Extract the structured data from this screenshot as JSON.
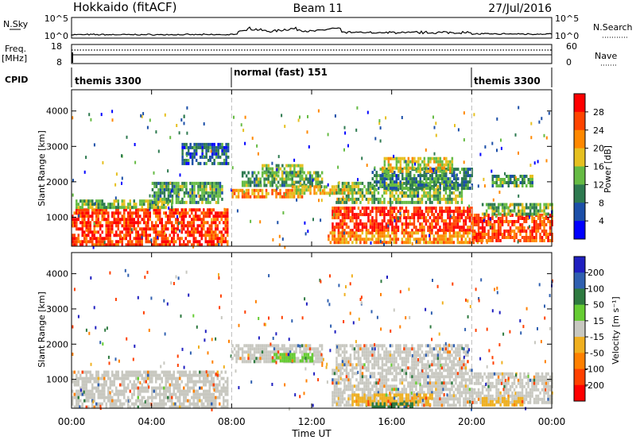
{
  "header": {
    "station": "Hokkaido (fitACF)",
    "beam": "Beam 11",
    "date": "27/Jul/2016"
  },
  "nsky_panel": {
    "left_label": "N.Sky",
    "left_ticks": [
      "10^5",
      "10^0"
    ],
    "right_ticks": [
      "10^5",
      "10^0"
    ],
    "right_label": "N.Search"
  },
  "freq_panel": {
    "left_label_line1": "Freq.",
    "left_label_line2": "[MHz]",
    "left_ticks": [
      "18",
      "8"
    ],
    "right_ticks": [
      "60",
      "0"
    ],
    "right_label": "Nave"
  },
  "cpid_panel": {
    "label": "CPID",
    "segments": [
      {
        "label": "themis 3300",
        "start_hour": 0,
        "end_hour": 8
      },
      {
        "label": "normal (fast) 151",
        "start_hour": 8,
        "end_hour": 20
      },
      {
        "label": "themis 3300",
        "start_hour": 20,
        "end_hour": 24
      }
    ]
  },
  "colors": {
    "power_scale": [
      "#0000ff",
      "#1c4fa8",
      "#2e7a50",
      "#66bb44",
      "#e6c020",
      "#ff8800",
      "#ff4400",
      "#ff0000"
    ],
    "velocity_scale": [
      "#2020c0",
      "#3060b0",
      "#2e7a40",
      "#66cc33",
      "#c8c8c0",
      "#f0b020",
      "#ff8000",
      "#ff4000",
      "#ff0000"
    ]
  },
  "chart_data": [
    {
      "type": "heatmap",
      "name": "power",
      "ylabel": "Slant Range [km]",
      "xlabel": "",
      "xlim": [
        0,
        24
      ],
      "ylim": [
        180,
        4600
      ],
      "yticks": [
        "1000",
        "2000",
        "3000",
        "4000"
      ],
      "xticks": [
        "00:00",
        "04:00",
        "08:00",
        "12:00",
        "16:00",
        "20:00",
        "00:00"
      ],
      "colorbar": {
        "label": "Power [dB]",
        "ticks": [
          "28",
          "24",
          "20",
          "16",
          "12",
          "8",
          "4"
        ],
        "range": [
          0,
          32
        ]
      },
      "regions": [
        {
          "t0": 0.0,
          "t1": 7.8,
          "r0": 250,
          "r1": 1250,
          "value": 27
        },
        {
          "t0": 0.2,
          "t1": 5.0,
          "r0": 1250,
          "r1": 1500,
          "value": 14
        },
        {
          "t0": 4.0,
          "t1": 7.5,
          "r0": 1400,
          "r1": 2000,
          "value": 12
        },
        {
          "t0": 5.5,
          "t1": 7.8,
          "r0": 2500,
          "r1": 3100,
          "value": 8
        },
        {
          "t0": 8.0,
          "t1": 11.5,
          "r0": 1550,
          "r1": 1800,
          "value": 23
        },
        {
          "t0": 9.5,
          "t1": 11.5,
          "r0": 2200,
          "r1": 2500,
          "value": 15
        },
        {
          "t0": 8.5,
          "t1": 12.5,
          "r0": 1900,
          "r1": 2300,
          "value": 12
        },
        {
          "t0": 11.0,
          "t1": 14.0,
          "r0": 1650,
          "r1": 1900,
          "value": 18
        },
        {
          "t0": 13.0,
          "t1": 20.0,
          "r0": 600,
          "r1": 1300,
          "value": 28
        },
        {
          "t0": 13.2,
          "t1": 19.5,
          "r0": 1400,
          "r1": 2000,
          "value": 14
        },
        {
          "t0": 15.0,
          "t1": 20.0,
          "r0": 1800,
          "r1": 2400,
          "value": 10
        },
        {
          "t0": 15.5,
          "t1": 19.0,
          "r0": 2300,
          "r1": 2700,
          "value": 17
        },
        {
          "t0": 12.8,
          "t1": 20.5,
          "r0": 250,
          "r1": 600,
          "value": 22
        },
        {
          "t0": 20.0,
          "t1": 24.0,
          "r0": 300,
          "r1": 1100,
          "value": 26
        },
        {
          "t0": 20.5,
          "t1": 24.0,
          "r0": 1100,
          "r1": 1400,
          "value": 14
        },
        {
          "t0": 21.0,
          "t1": 23.0,
          "r0": 1900,
          "r1": 2200,
          "value": 12
        }
      ]
    },
    {
      "type": "heatmap",
      "name": "velocity",
      "ylabel": "Slant Range [km]",
      "xlabel": "Time UT",
      "xlim": [
        0,
        24
      ],
      "ylim": [
        180,
        4600
      ],
      "yticks": [
        "1000",
        "2000",
        "3000",
        "4000"
      ],
      "xticks": [
        "00:00",
        "04:00",
        "08:00",
        "12:00",
        "16:00",
        "20:00",
        "00:00"
      ],
      "colorbar": {
        "label": "Velocity [m s⁻¹]",
        "ticks": [
          "200",
          "100",
          "50",
          "15",
          "-15",
          "-50",
          "-100",
          "-200"
        ]
      },
      "regions": [
        {
          "t0": 0.0,
          "t1": 7.8,
          "r0": 250,
          "r1": 1250,
          "value": 0
        },
        {
          "t0": 8.0,
          "t1": 12.5,
          "r0": 1500,
          "r1": 2000,
          "value": 0
        },
        {
          "t0": 10.0,
          "t1": 12.0,
          "r0": 1500,
          "r1": 1750,
          "value": 30
        },
        {
          "t0": 13.0,
          "t1": 20.0,
          "r0": 300,
          "r1": 1300,
          "value": 0
        },
        {
          "t0": 13.2,
          "t1": 19.8,
          "r0": 1350,
          "r1": 2000,
          "value": 0
        },
        {
          "t0": 14.0,
          "t1": 18.0,
          "r0": 300,
          "r1": 600,
          "value": -40
        },
        {
          "t0": 15.0,
          "t1": 17.0,
          "r0": 200,
          "r1": 350,
          "value": 40
        },
        {
          "t0": 20.0,
          "t1": 24.0,
          "r0": 300,
          "r1": 1200,
          "value": 0
        },
        {
          "t0": 20.5,
          "t1": 22.5,
          "r0": 250,
          "r1": 500,
          "value": -40
        }
      ]
    }
  ]
}
